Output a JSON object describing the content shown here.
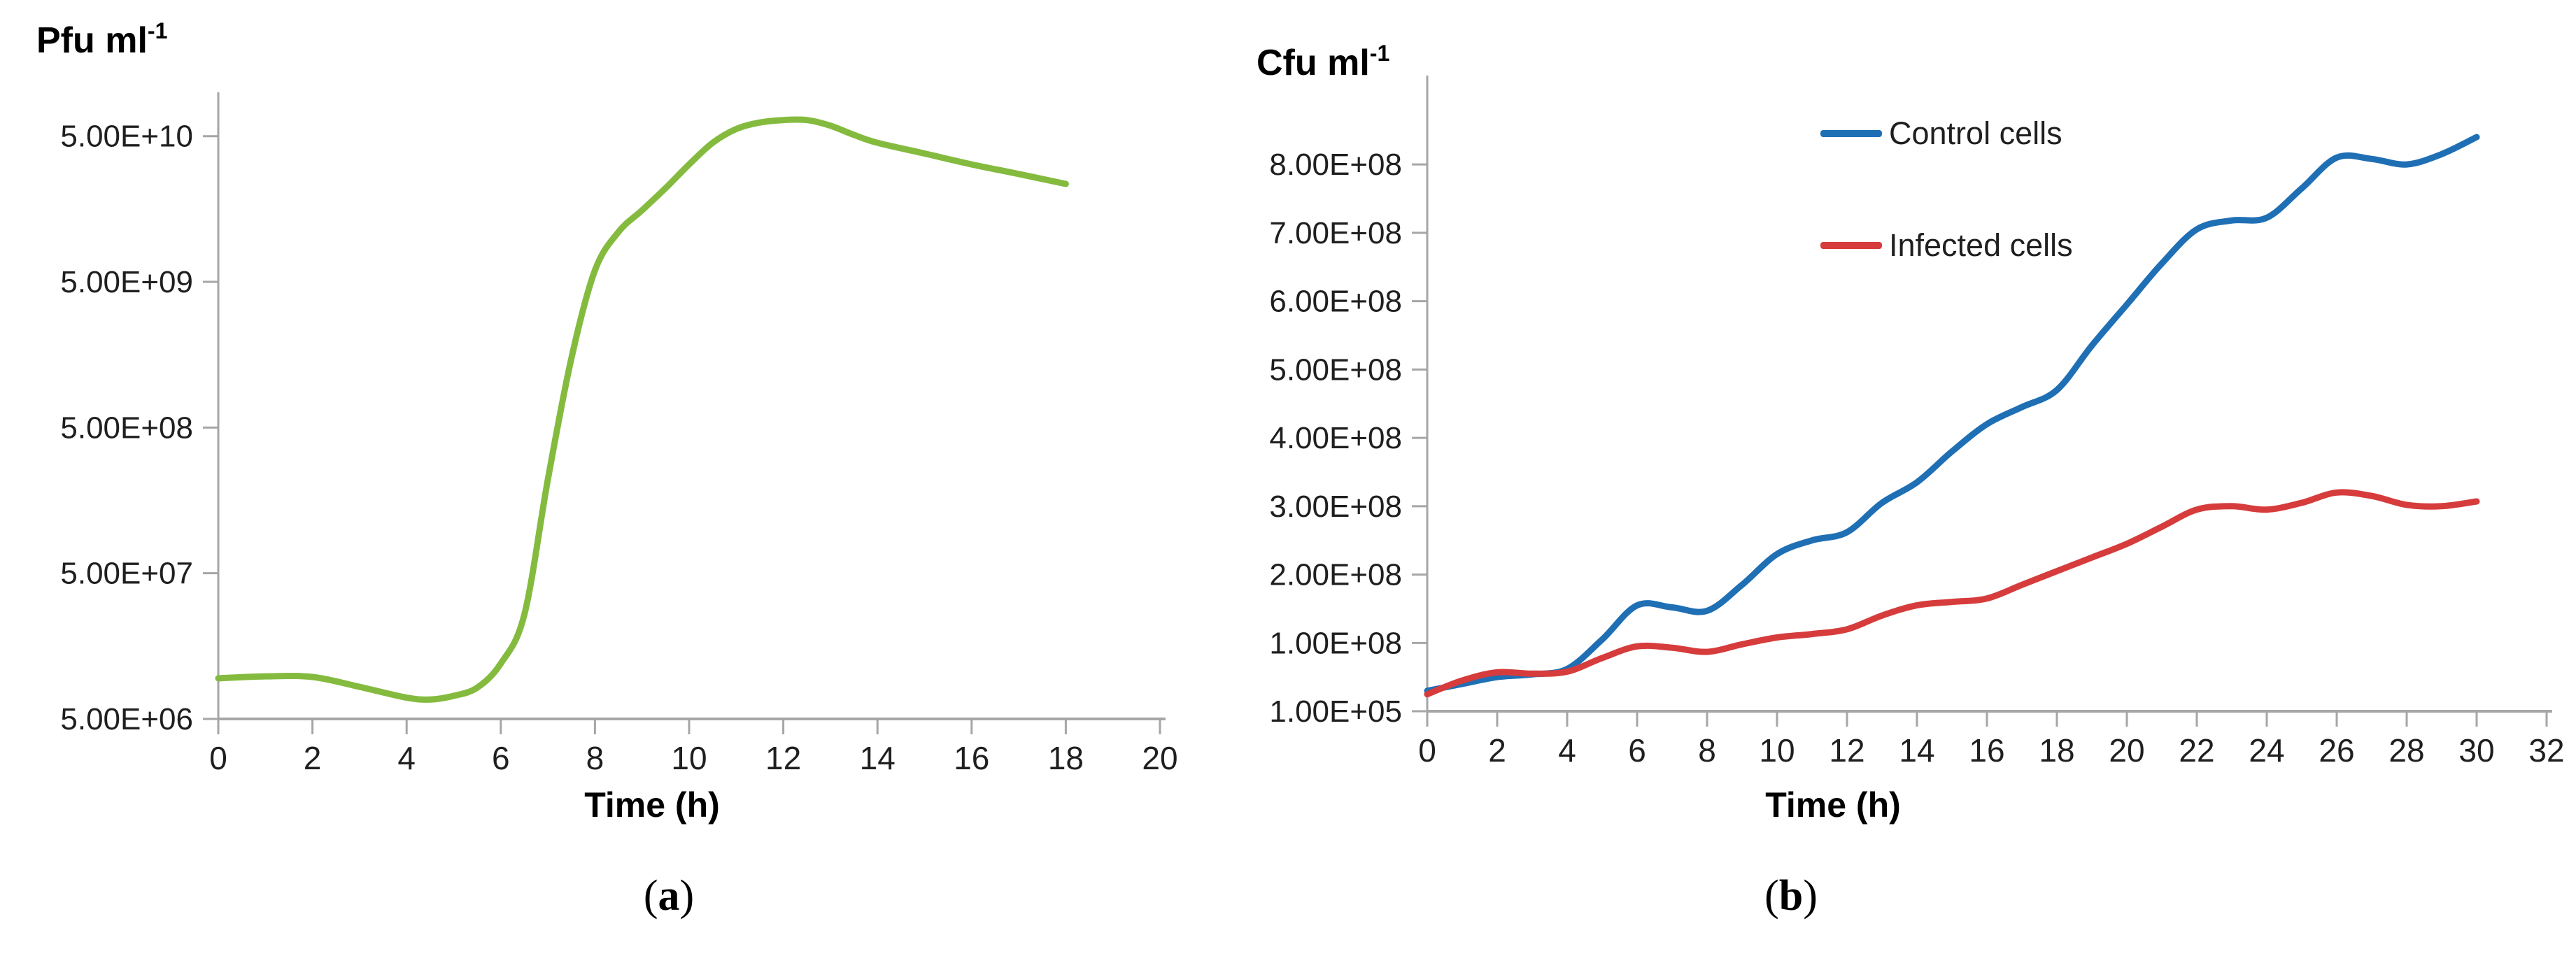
{
  "figure": {
    "background": "#ffffff",
    "axis_color": "#a6a6a6",
    "text_color": "#1f1f1f"
  },
  "chart_data": [
    {
      "id": "a",
      "type": "line",
      "title": {
        "text": "Pfu ml⁻¹",
        "base": "Pfu ml",
        "sup": "-1"
      },
      "xlabel": "Time (h)",
      "panel_caption": {
        "open": "(",
        "letter": "a",
        "close": ")"
      },
      "yscale": "log",
      "xlim": [
        0,
        20
      ],
      "ylim": [
        5000000.0,
        100000000000.0
      ],
      "grid": false,
      "x_ticks": [
        0,
        2,
        4,
        6,
        8,
        10,
        12,
        14,
        16,
        18,
        20
      ],
      "y_ticks": [
        {
          "label": "5.00E+06",
          "value": 5000000.0
        },
        {
          "label": "5.00E+07",
          "value": 50000000.0
        },
        {
          "label": "5.00E+08",
          "value": 500000000.0
        },
        {
          "label": "5.00E+09",
          "value": 5000000000.0
        },
        {
          "label": "5.00E+10",
          "value": 50000000000.0
        }
      ],
      "series": [
        {
          "color": "#84bb3f",
          "points": [
            [
              0,
              9500000.0
            ],
            [
              1,
              9800000.0
            ],
            [
              2,
              9700000.0
            ],
            [
              3,
              8300000.0
            ],
            [
              4,
              7000000.0
            ],
            [
              4.5,
              6800000.0
            ],
            [
              5,
              7200000.0
            ],
            [
              5.5,
              8200000.0
            ],
            [
              6,
              12000000.0
            ],
            [
              6.5,
              26000000.0
            ],
            [
              7,
              220000000.0
            ],
            [
              7.5,
              1500000000.0
            ],
            [
              8,
              6000000000.0
            ],
            [
              8.5,
              11000000000.0
            ],
            [
              9,
              15500000000.0
            ],
            [
              9.5,
              22000000000.0
            ],
            [
              10,
              32000000000.0
            ],
            [
              10.5,
              45000000000.0
            ],
            [
              11,
              56000000000.0
            ],
            [
              11.5,
              62000000000.0
            ],
            [
              12,
              64500000000.0
            ],
            [
              12.5,
              64500000000.0
            ],
            [
              13,
              59000000000.0
            ],
            [
              13.5,
              51000000000.0
            ],
            [
              14,
              45000000000.0
            ],
            [
              15,
              38000000000.0
            ],
            [
              16,
              32000000000.0
            ],
            [
              17,
              27500000000.0
            ],
            [
              18,
              23500000000.0
            ]
          ]
        }
      ]
    },
    {
      "id": "b",
      "type": "line",
      "title": {
        "text": "Cfu ml⁻¹",
        "base": "Cfu ml",
        "sup": "-1"
      },
      "xlabel": "Time (h)",
      "panel_caption": {
        "open": "(",
        "letter": "b",
        "close": ")"
      },
      "yscale": "linear",
      "xlim": [
        0,
        32
      ],
      "ylim": [
        100000.0,
        930000000.0
      ],
      "grid": false,
      "legend_position": "top-right",
      "x_ticks": [
        0,
        2,
        4,
        6,
        8,
        10,
        12,
        14,
        16,
        18,
        20,
        22,
        24,
        26,
        28,
        30,
        32
      ],
      "y_ticks": [
        {
          "label": "1.00E+05",
          "value": 100000.0
        },
        {
          "label": "1.00E+08",
          "value": 100000000.0
        },
        {
          "label": "2.00E+08",
          "value": 200000000.0
        },
        {
          "label": "3.00E+08",
          "value": 300000000.0
        },
        {
          "label": "4.00E+08",
          "value": 400000000.0
        },
        {
          "label": "5.00E+08",
          "value": 500000000.0
        },
        {
          "label": "6.00E+08",
          "value": 600000000.0
        },
        {
          "label": "7.00E+08",
          "value": 700000000.0
        },
        {
          "label": "8.00E+08",
          "value": 800000000.0
        }
      ],
      "series": [
        {
          "name": "Control cells",
          "color": "#1f6fb5",
          "points": [
            [
              0,
              30000000.0
            ],
            [
              1,
              40000000.0
            ],
            [
              2,
              50000000.0
            ],
            [
              3,
              54000000.0
            ],
            [
              4,
              62000000.0
            ],
            [
              5,
              105000000.0
            ],
            [
              6,
              155000000.0
            ],
            [
              7,
              152000000.0
            ],
            [
              8,
              147000000.0
            ],
            [
              9,
              185000000.0
            ],
            [
              10,
              230000000.0
            ],
            [
              11,
              250000000.0
            ],
            [
              12,
              262000000.0
            ],
            [
              13,
              305000000.0
            ],
            [
              14,
              335000000.0
            ],
            [
              15,
              380000000.0
            ],
            [
              16,
              420000000.0
            ],
            [
              17,
              445000000.0
            ],
            [
              18,
              470000000.0
            ],
            [
              19,
              535000000.0
            ],
            [
              20,
              595000000.0
            ],
            [
              21,
              655000000.0
            ],
            [
              22,
              705000000.0
            ],
            [
              23,
              718000000.0
            ],
            [
              24,
              722000000.0
            ],
            [
              25,
              765000000.0
            ],
            [
              26,
              810000000.0
            ],
            [
              27,
              808000000.0
            ],
            [
              28,
              800000000.0
            ],
            [
              29,
              815000000.0
            ],
            [
              30,
              840000000.0
            ]
          ]
        },
        {
          "name": "Infected cells",
          "color": "#d63c3c",
          "points": [
            [
              0,
              25000000.0
            ],
            [
              1,
              45000000.0
            ],
            [
              2,
              57000000.0
            ],
            [
              3,
              55000000.0
            ],
            [
              4,
              58000000.0
            ],
            [
              5,
              78000000.0
            ],
            [
              6,
              95000000.0
            ],
            [
              7,
              93000000.0
            ],
            [
              8,
              87000000.0
            ],
            [
              9,
              98000000.0
            ],
            [
              10,
              108000000.0
            ],
            [
              11,
              113000000.0
            ],
            [
              12,
              120000000.0
            ],
            [
              13,
              140000000.0
            ],
            [
              14,
              155000000.0
            ],
            [
              15,
              160000000.0
            ],
            [
              16,
              165000000.0
            ],
            [
              17,
              185000000.0
            ],
            [
              18,
              205000000.0
            ],
            [
              19,
              225000000.0
            ],
            [
              20,
              245000000.0
            ],
            [
              21,
              270000000.0
            ],
            [
              22,
              295000000.0
            ],
            [
              23,
              300000000.0
            ],
            [
              24,
              295000000.0
            ],
            [
              25,
              305000000.0
            ],
            [
              26,
              320000000.0
            ],
            [
              27,
              315000000.0
            ],
            [
              28,
              302000000.0
            ],
            [
              29,
              300000000.0
            ],
            [
              30,
              307000000.0
            ]
          ]
        }
      ]
    }
  ]
}
